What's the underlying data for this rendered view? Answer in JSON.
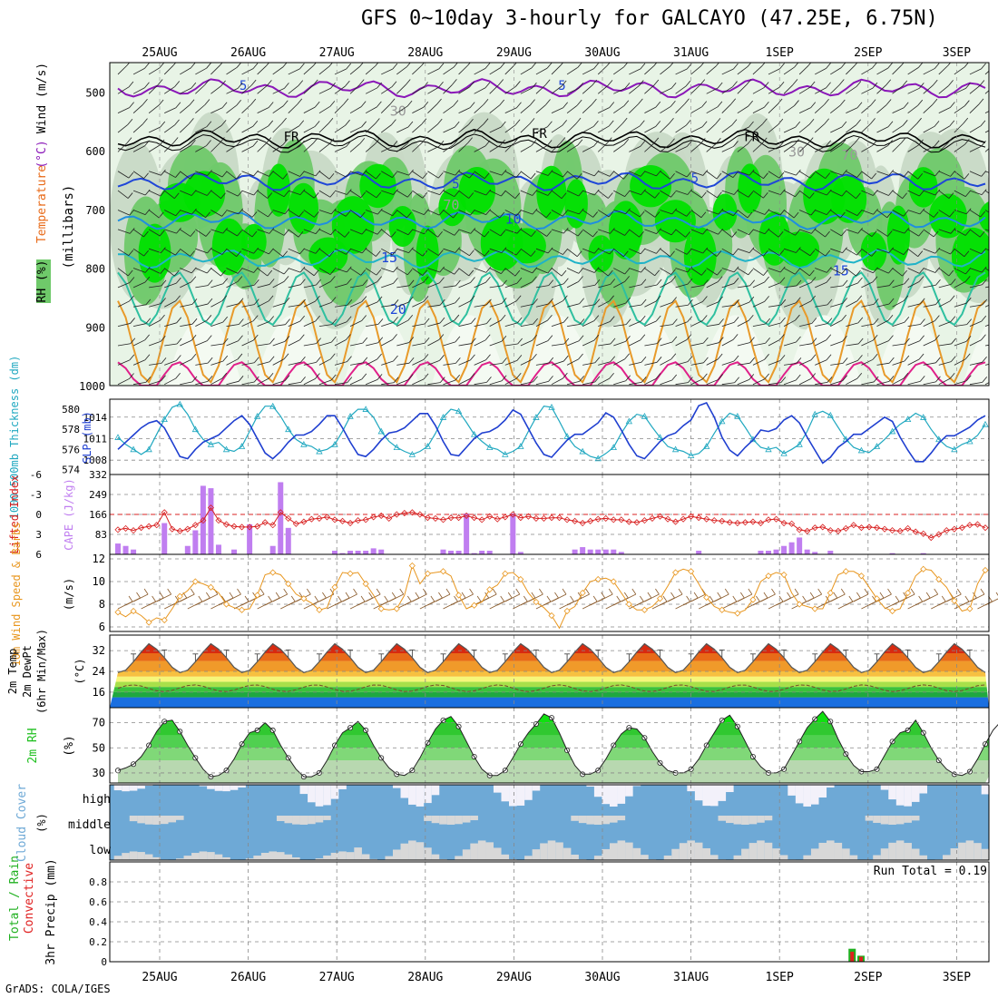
{
  "title": "GFS 0~10day 3-hourly for GALCAYO (47.25E, 6.75N)",
  "credit": "GrADS: COLA/IGES",
  "date_labels": [
    "25AUG",
    "26AUG",
    "27AUG",
    "28AUG",
    "29AUG",
    "30AUG",
    "31AUG",
    "1SEP",
    "2SEP",
    "3SEP"
  ],
  "colors": {
    "rh_light": "#e8f4e6",
    "rh_mid": "#c8d9c6",
    "rh_green": "#6fc96a",
    "rh_bright": "#00e000",
    "temp_purple": "#8a17b8",
    "temp_blue": "#1f46d8",
    "temp_lblue": "#1f8ee0",
    "temp_cyan": "#1fb3c8",
    "temp_teal": "#2fc0a0",
    "temp_orange": "#e89a2a",
    "temp_magenta": "#e0208a",
    "cape": "#c07ef0",
    "li": "#d82020",
    "thick": "#20a8c0",
    "slp": "#1f3fd0",
    "wind10": "#e8961e",
    "barb10": "#8a5a2a",
    "rh2m": "#20c020",
    "cloud": "#6ea9d6",
    "cloud_bg": "#d8d8d8",
    "precip_total": "#20b020",
    "precip_conv": "#e02020"
  },
  "chart_data": [
    {
      "type": "heatmap",
      "panel": "upper-air",
      "ylabel_parts": [
        "RH (%)",
        "Temperature",
        "(°C)",
        "Wind (m/s)"
      ],
      "ylabel_unit": "(millibars)",
      "yticks": [
        "500",
        "600",
        "700",
        "800",
        "900",
        "1000"
      ],
      "ylim": [
        1000,
        450
      ],
      "contour_labels": [
        {
          "text": "5",
          "t": 0.9,
          "p": 496
        },
        {
          "text": "5",
          "t": 4.5,
          "p": 496
        },
        {
          "text": "FR",
          "t": 4.2,
          "p": 578
        },
        {
          "text": "FR",
          "t": 1.4,
          "p": 584
        },
        {
          "text": "FR",
          "t": 6.6,
          "p": 584
        },
        {
          "text": "5",
          "t": 3.3,
          "p": 664
        },
        {
          "text": "5",
          "t": 6.0,
          "p": 654
        },
        {
          "text": "10",
          "t": 3.9,
          "p": 724
        },
        {
          "text": "15",
          "t": 2.5,
          "p": 790
        },
        {
          "text": "15",
          "t": 7.6,
          "p": 812
        },
        {
          "text": "20",
          "t": 2.6,
          "p": 878
        },
        {
          "text": "30",
          "t": 2.6,
          "p": 540
        },
        {
          "text": "30",
          "t": 7.1,
          "p": 610
        },
        {
          "text": "70",
          "t": 3.2,
          "p": 700
        },
        {
          "text": "70",
          "t": 7.7,
          "p": 615
        }
      ],
      "isotherms": [
        {
          "label": "5 (upper)",
          "color": "purple",
          "base_p": 494
        },
        {
          "label": "FR",
          "color": "black",
          "base_p": 580
        },
        {
          "label": "5",
          "color": "blue",
          "base_p": 652
        },
        {
          "label": "10",
          "color": "lblue",
          "base_p": 718
        },
        {
          "label": "15",
          "color": "cyan",
          "base_p": 784
        },
        {
          "label": "20",
          "color": "teal",
          "base_p": 852
        },
        {
          "label": "25",
          "color": "orange",
          "base_p": 925
        },
        {
          "label": "30",
          "color": "magenta",
          "base_p": 985
        }
      ]
    },
    {
      "type": "line",
      "panel": "thickness-slp",
      "ylabel_left": "1000-500mb Thickness (dm)",
      "ylabel_right": "SLP (mb)",
      "yticks_thickness": [
        "580",
        "578",
        "576",
        "574"
      ],
      "yticks_slp": [
        "1014",
        "1011",
        "1008"
      ],
      "series": [
        {
          "name": "Thickness",
          "values": [
            577.2,
            576.5,
            576.0,
            575.5,
            576.0,
            577.5,
            579.0,
            580.2,
            580.5,
            579.5,
            578.0,
            577.0,
            576.5,
            576.7,
            576.0,
            575.8,
            576.3,
            577.8,
            579.3,
            580.3,
            580.3,
            579.3,
            578.0,
            577.0,
            576.5,
            576.3,
            575.8,
            576.0,
            576.5,
            577.8,
            579.3,
            580.0,
            580.0,
            579.2,
            577.8,
            576.8,
            576.2,
            575.8,
            575.5,
            575.8,
            576.3,
            577.6,
            579.2,
            580.0,
            579.8,
            578.7,
            577.5,
            576.8,
            576.2,
            576.0,
            575.5,
            575.8,
            576.3,
            577.8,
            579.2,
            580.3,
            580.2,
            578.8,
            577.3,
            576.3,
            575.8,
            575.3,
            575.1,
            575.6,
            576.2,
            577.6,
            578.8,
            579.5,
            579.3,
            578.2,
            577.2,
            576.3,
            576.0,
            575.8,
            575.4,
            575.6,
            576.3,
            577.6,
            578.8,
            579.6,
            579.3,
            578.2,
            577.0,
            576.2,
            576.0,
            576.2,
            575.6,
            576.0,
            576.5,
            577.8,
            579.5,
            579.8,
            579.4,
            578.2,
            577.0,
            576.2,
            575.9,
            575.7,
            576.3,
            577.0,
            577.8,
            578.5,
            579.0,
            579.6,
            579.2,
            578.0,
            577.0,
            576.3,
            576.0,
            576.5,
            576.8,
            577.4,
            578.5
          ]
        },
        {
          "name": "SLP",
          "values": [
            1009.5,
            1010.5,
            1011.5,
            1012.5,
            1013.2,
            1013.5,
            1012.5,
            1010.5,
            1008.5,
            1008.2,
            1009.5,
            1010.5,
            1011.0,
            1011.5,
            1012.5,
            1013.5,
            1014.2,
            1013.0,
            1011.0,
            1009.0,
            1008.2,
            1009.2,
            1010.5,
            1011.5,
            1011.5,
            1012.0,
            1013.0,
            1014.2,
            1014.2,
            1012.5,
            1010.5,
            1008.8,
            1008.5,
            1009.5,
            1010.8,
            1011.8,
            1012.0,
            1012.5,
            1013.5,
            1014.5,
            1014.5,
            1012.8,
            1010.6,
            1008.8,
            1008.6,
            1009.8,
            1011.0,
            1011.8,
            1012.0,
            1012.6,
            1013.6,
            1015.0,
            1014.4,
            1012.4,
            1010.4,
            1008.8,
            1008.4,
            1009.6,
            1010.8,
            1011.6,
            1011.6,
            1012.4,
            1013.2,
            1014.6,
            1014.0,
            1012.2,
            1010.2,
            1008.6,
            1008.2,
            1009.4,
            1010.6,
            1011.4,
            1011.8,
            1012.8,
            1013.6,
            1015.6,
            1016.0,
            1014.0,
            1011.2,
            1009.4,
            1008.6,
            1009.8,
            1010.8,
            1012.2,
            1012.0,
            1012.4,
            1013.6,
            1014.2,
            1013.2,
            1011.2,
            1009.4,
            1007.6,
            1008.4,
            1009.8,
            1010.6,
            1011.6,
            1011.6,
            1012.4,
            1013.2,
            1014.0,
            1013.4,
            1011.2,
            1009.4,
            1007.8,
            1007.8,
            1009.0,
            1010.4,
            1011.4,
            1011.4,
            1012.0,
            1012.6,
            1013.6,
            1014.2
          ]
        }
      ]
    },
    {
      "type": "bar",
      "panel": "li-cape",
      "ylabel_left": "Lifted Index",
      "ylabel_right": "CAPE (J/kg)",
      "yticks_li": [
        "-6",
        "-3",
        "0",
        "3",
        "6"
      ],
      "yticks_cape": [
        "332",
        "249",
        "166",
        "83"
      ],
      "cape": [
        45,
        35,
        20,
        0,
        0,
        0,
        130,
        0,
        0,
        35,
        100,
        285,
        275,
        40,
        0,
        20,
        0,
        125,
        0,
        0,
        35,
        300,
        110,
        0,
        0,
        0,
        0,
        0,
        15,
        5,
        15,
        15,
        15,
        25,
        20,
        0,
        0,
        0,
        0,
        0,
        0,
        0,
        20,
        15,
        15,
        170,
        5,
        15,
        15,
        0,
        0,
        170,
        10,
        0,
        0,
        0,
        0,
        0,
        0,
        20,
        30,
        20,
        20,
        20,
        20,
        10,
        0,
        0,
        0,
        0,
        0,
        0,
        0,
        0,
        0,
        15,
        0,
        0,
        0,
        0,
        0,
        0,
        0,
        15,
        15,
        20,
        35,
        50,
        70,
        20,
        10,
        0,
        15,
        0,
        0,
        0,
        0,
        0,
        0,
        0,
        5,
        0,
        0,
        0,
        5,
        0,
        0,
        0,
        0,
        0,
        0,
        0,
        0,
        0,
        0
      ],
      "li": [
        2.3,
        2.1,
        2.4,
        2.0,
        1.8,
        1.6,
        -0.3,
        2.2,
        2.5,
        2.2,
        1.6,
        0.9,
        -1.0,
        0.9,
        1.5,
        1.8,
        1.9,
        1.9,
        1.8,
        1.2,
        1.6,
        -0.3,
        0.6,
        1.4,
        1.1,
        0.7,
        0.6,
        0.4,
        0.8,
        1.0,
        1.3,
        0.9,
        0.8,
        0.4,
        0.2,
        0.6,
        0.0,
        -0.2,
        -0.3,
        0.0,
        0.5,
        0.6,
        0.8,
        0.5,
        0.5,
        0.2,
        0.5,
        0.8,
        0.3,
        0.7,
        0.4,
        0.0,
        0.5,
        0.3,
        0.6,
        0.6,
        0.5,
        0.5,
        0.8,
        1.0,
        1.3,
        1.0,
        0.7,
        0.6,
        0.8,
        0.8,
        1.1,
        1.2,
        0.9,
        0.6,
        0.3,
        0.7,
        1.1,
        0.7,
        0.3,
        0.5,
        0.7,
        0.9,
        1.0,
        1.2,
        1.3,
        1.2,
        1.1,
        1.3,
        0.8,
        0.7,
        1.3,
        1.4,
        2.3,
        2.5,
        2.0,
        1.9,
        2.4,
        2.5,
        2.1,
        1.6,
        2.0,
        1.9,
        2.0,
        2.2,
        2.4,
        2.5,
        2.1,
        2.6,
        2.9,
        3.5,
        3.0,
        2.4,
        2.2,
        2.0,
        1.6,
        1.5,
        2.0
      ]
    },
    {
      "type": "line",
      "panel": "wind10m",
      "ylabel": "10m Wind Speed & Barbs",
      "yunit": "(m/s)",
      "yticks": [
        "12",
        "10",
        "8",
        "6"
      ],
      "ylim": [
        5.6,
        12.4
      ],
      "series": [
        {
          "name": "10m Wind Speed",
          "values": [
            7.3,
            6.9,
            7.4,
            7.0,
            6.4,
            6.8,
            6.6,
            7.6,
            8.7,
            9.2,
            10.0,
            9.8,
            9.5,
            9.0,
            8.0,
            7.7,
            7.5,
            7.6,
            8.8,
            10.6,
            10.8,
            10.6,
            9.8,
            8.9,
            8.5,
            8.1,
            7.5,
            7.7,
            9.5,
            10.8,
            10.7,
            10.8,
            9.8,
            8.8,
            7.6,
            7.5,
            7.6,
            8.8,
            11.4,
            9.8,
            10.7,
            10.8,
            10.9,
            10.5,
            8.8,
            7.6,
            7.9,
            8.2,
            9.3,
            9.7,
            10.7,
            10.8,
            10.2,
            9.0,
            8.2,
            7.7,
            7.0,
            5.9,
            7.4,
            7.8,
            9.0,
            10.0,
            10.2,
            10.3,
            10.0,
            9.0,
            8.0,
            7.5,
            7.5,
            7.8,
            8.5,
            9.6,
            10.8,
            11.1,
            10.9,
            9.8,
            8.6,
            7.8,
            7.5,
            7.3,
            7.2,
            7.5,
            8.4,
            10.0,
            10.5,
            10.8,
            10.6,
            9.0,
            8.0,
            7.8,
            7.6,
            7.6,
            9.0,
            10.6,
            10.9,
            10.9,
            10.5,
            9.5,
            8.5,
            7.7,
            7.4,
            7.6,
            9.0,
            10.5,
            11.1,
            11.0,
            10.2,
            9.5,
            8.3,
            7.4,
            7.6,
            9.8,
            11.0
          ]
        }
      ]
    },
    {
      "type": "area",
      "panel": "temp2m",
      "ylabel_lines": [
        "2m Temp",
        "2m DewPt",
        "(6hr Min/Max)"
      ],
      "yunit": "(°C)",
      "yticks": [
        "32",
        "24",
        "16"
      ],
      "ylim": [
        10,
        38
      ],
      "temp_min": 24,
      "temp_max": 35,
      "dewpt_mean": 17.5
    },
    {
      "type": "area",
      "panel": "rh2m",
      "ylabel": "2m RH",
      "yunit": "(%)",
      "yticks": [
        "70",
        "50",
        "30"
      ],
      "ylim": [
        22,
        82
      ],
      "series": [
        {
          "name": "2m RH",
          "values": [
            32,
            34,
            37,
            43,
            52,
            63,
            71,
            72,
            63,
            52,
            42,
            33,
            27,
            28,
            32,
            41,
            53,
            62,
            64,
            70,
            64,
            52,
            42,
            33,
            27,
            27,
            30,
            40,
            52,
            62,
            66,
            71,
            64,
            52,
            42,
            34,
            29,
            28,
            32,
            42,
            54,
            65,
            72,
            75,
            67,
            55,
            43,
            33,
            28,
            28,
            32,
            42,
            53,
            62,
            69,
            77,
            74,
            62,
            48,
            36,
            29,
            29,
            32,
            41,
            52,
            61,
            66,
            65,
            58,
            47,
            38,
            32,
            30,
            30,
            33,
            41,
            52,
            62,
            72,
            76,
            67,
            55,
            43,
            35,
            30,
            30,
            33,
            44,
            55,
            66,
            73,
            79,
            71,
            57,
            45,
            36,
            31,
            31,
            33,
            44,
            55,
            62,
            64,
            72,
            62,
            50,
            40,
            33,
            29,
            28,
            31,
            41,
            53,
            64,
            71,
            57
          ]
        }
      ]
    },
    {
      "type": "table",
      "panel": "cloud",
      "ylabel": "Cloud Cover",
      "yunit": "(%)",
      "levels": [
        "high",
        "middle",
        "low"
      ]
    },
    {
      "type": "bar",
      "panel": "precip",
      "ylabel_total": "3hr Precip (mm)",
      "ylabel_parts": [
        "Total / Rain",
        "Convective"
      ],
      "run_total": "Run Total = 0.19",
      "yticks": [
        "0.8",
        "0.6",
        "0.4",
        "0.2",
        "0"
      ],
      "extra_ytick": "0.6",
      "ylim": [
        0,
        1.0
      ],
      "bars": [
        {
          "t": 7.82,
          "total": 0.13,
          "conv": 0.1
        },
        {
          "t": 7.92,
          "total": 0.06,
          "conv": 0.05
        }
      ]
    }
  ]
}
